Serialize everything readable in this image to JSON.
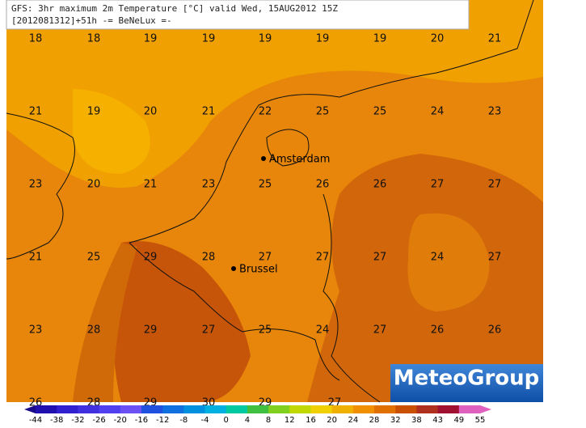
{
  "header": {
    "line1": "GFS: 3hr maximum 2m Temperature [°C] valid Wed, 15AUG2012 15Z",
    "line2": "[2012081312]+51h -= BeNeLux =-"
  },
  "grid": {
    "rows": [
      [
        18,
        18,
        19,
        19,
        19,
        19,
        19,
        20,
        21
      ],
      [
        21,
        19,
        20,
        21,
        22,
        25,
        25,
        24,
        23
      ],
      [
        23,
        20,
        21,
        23,
        25,
        26,
        26,
        27,
        27
      ],
      [
        21,
        25,
        29,
        28,
        27,
        27,
        27,
        24,
        27
      ],
      [
        23,
        28,
        29,
        27,
        25,
        24,
        27,
        26,
        26
      ],
      [
        26,
        28,
        29,
        30,
        29,
        27
      ]
    ]
  },
  "cities": [
    {
      "label": "Amsterdam"
    },
    {
      "label": "Brussel"
    }
  ],
  "legend": {
    "labels": [
      -44,
      -38,
      -32,
      -26,
      -20,
      -16,
      -12,
      -8,
      -4,
      0,
      4,
      8,
      12,
      16,
      20,
      24,
      28,
      32,
      38,
      43,
      49,
      55
    ]
  },
  "logo": {
    "text": "MeteoGroup"
  }
}
